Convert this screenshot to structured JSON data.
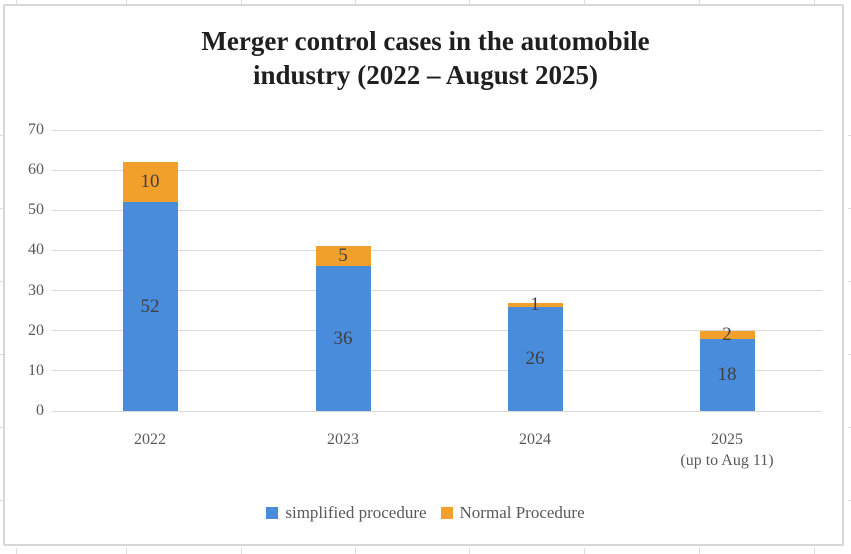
{
  "title": {
    "line1": "Merger control cases in the automobile",
    "line2": "industry (2022 – August 2025)"
  },
  "chart_data": {
    "type": "bar",
    "stacked": true,
    "title": "Merger control cases in the automobile industry (2022 – August 2025)",
    "categories": [
      "2022",
      "2023",
      "2024",
      "2025"
    ],
    "category_sublabels": [
      "",
      "",
      "",
      "(up to Aug 11)"
    ],
    "series": [
      {
        "name": "simplified procedure",
        "color": "#4A8CDC",
        "values": [
          52,
          36,
          26,
          18
        ]
      },
      {
        "name": "Normal Procedure",
        "color": "#F2A02C",
        "values": [
          10,
          5,
          1,
          2
        ]
      }
    ],
    "totals": [
      62,
      41,
      27,
      20
    ],
    "ylim": [
      0,
      70
    ],
    "yticks": [
      0,
      10,
      20,
      30,
      40,
      50,
      60,
      70
    ],
    "xlabel": "",
    "ylabel": "",
    "grid": "horizontal",
    "legend_position": "bottom",
    "data_labels": true
  },
  "colors": {
    "grid": "#D9D9D9",
    "frame_border": "#D7D7D7",
    "axis_text": "#595959",
    "data_label_text": "#3F3F3F",
    "title_text": "#1F1F1F",
    "background": "#FFFFFF"
  }
}
